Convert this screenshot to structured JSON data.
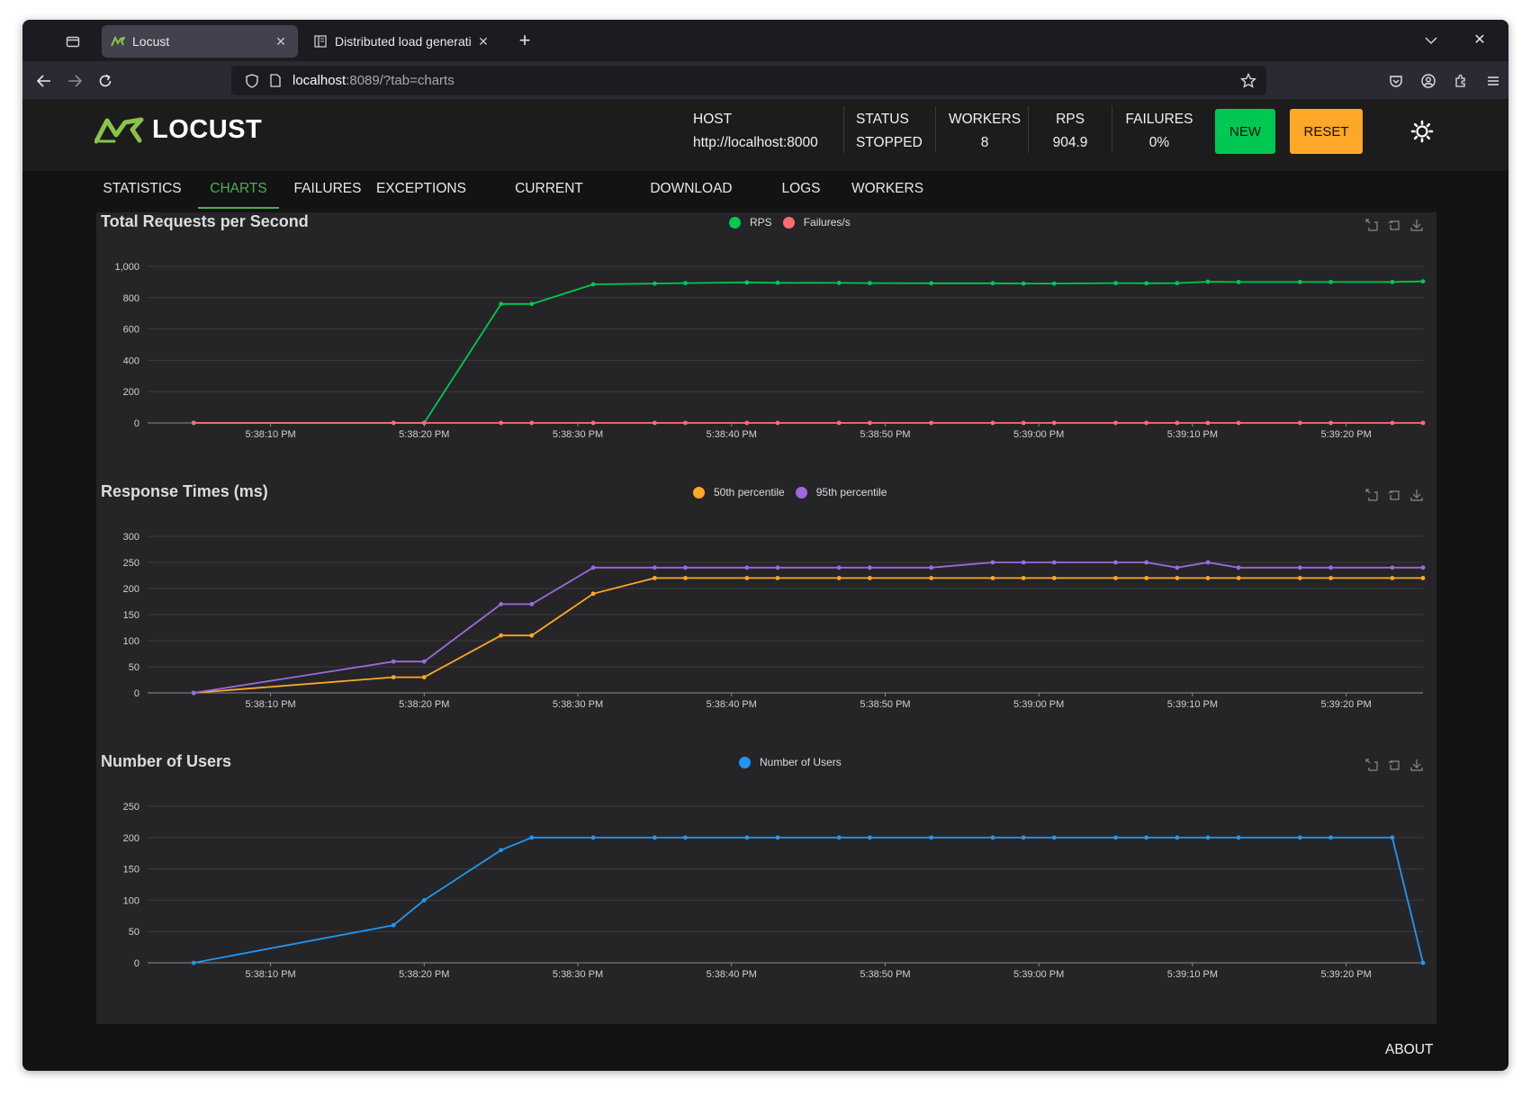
{
  "browser": {
    "tabs": [
      {
        "title": "Locust",
        "favicon": "locust-favicon-icon",
        "active": true
      },
      {
        "title": "Distributed load generati",
        "favicon": "reader-page-icon",
        "active": false
      }
    ],
    "url_host": "localhost",
    "url_rest": ":8089/?tab=charts"
  },
  "header": {
    "logo_text": "LOCUST",
    "host_label": "HOST",
    "host_value": "http://localhost:8000",
    "status_label": "STATUS",
    "status_value": "STOPPED",
    "workers_label": "WORKERS",
    "workers_value": "8",
    "rps_label": "RPS",
    "rps_value": "904.9",
    "failures_label": "FAILURES",
    "failures_value": "0%",
    "new_label": "NEW",
    "reset_label": "RESET"
  },
  "nav_tabs": [
    {
      "label": "STATISTICS",
      "active": false
    },
    {
      "label": "CHARTS",
      "active": true
    },
    {
      "label": "FAILURES",
      "active": false
    },
    {
      "label": "EXCEPTIONS",
      "active": false
    },
    {
      "label": "CURRENT RATIO",
      "active": false
    },
    {
      "label": "DOWNLOAD DATA",
      "active": false
    },
    {
      "label": "LOGS",
      "active": false
    },
    {
      "label": "WORKERS",
      "active": false
    }
  ],
  "footer": {
    "about_label": "ABOUT"
  },
  "colors": {
    "rps": "#00c853",
    "failures": "#ff6d6d",
    "p50": "#ffa726",
    "p95": "#9c6ade",
    "users": "#2196f3"
  },
  "chart_data": [
    {
      "type": "line",
      "title": "Total Requests per Second",
      "x": [
        "5:38:05",
        "5:38:18",
        "5:38:20",
        "5:38:25",
        "5:38:27",
        "5:38:31",
        "5:38:35",
        "5:38:37",
        "5:38:41",
        "5:38:43",
        "5:38:47",
        "5:38:49",
        "5:38:53",
        "5:38:57",
        "5:38:59",
        "5:39:01",
        "5:39:05",
        "5:39:07",
        "5:39:09",
        "5:39:11",
        "5:39:13",
        "5:39:17",
        "5:39:19",
        "5:39:23",
        "5:39:25"
      ],
      "xticks": [
        "5:38:10 PM",
        "5:38:20 PM",
        "5:38:30 PM",
        "5:38:40 PM",
        "5:38:50 PM",
        "5:39:00 PM",
        "5:39:10 PM",
        "5:39:20 PM"
      ],
      "ylim": [
        0,
        1000
      ],
      "yticks": [
        "0",
        "200",
        "400",
        "600",
        "800",
        "1,000"
      ],
      "series": [
        {
          "name": "RPS",
          "values": [
            0,
            0,
            0,
            760,
            760,
            885,
            890,
            893,
            897,
            895,
            894,
            893,
            892,
            892,
            890,
            890,
            893,
            892,
            893,
            902,
            900,
            900,
            900,
            900,
            904
          ]
        },
        {
          "name": "Failures/s",
          "values": [
            0,
            0,
            0,
            0,
            0,
            0,
            0,
            0,
            0,
            0,
            0,
            0,
            0,
            0,
            0,
            0,
            0,
            0,
            0,
            0,
            0,
            0,
            0,
            0,
            0
          ]
        }
      ]
    },
    {
      "type": "line",
      "title": "Response Times (ms)",
      "x": [
        "5:38:05",
        "5:38:18",
        "5:38:20",
        "5:38:25",
        "5:38:27",
        "5:38:31",
        "5:38:35",
        "5:38:37",
        "5:38:41",
        "5:38:43",
        "5:38:47",
        "5:38:49",
        "5:38:53",
        "5:38:57",
        "5:38:59",
        "5:39:01",
        "5:39:05",
        "5:39:07",
        "5:39:09",
        "5:39:11",
        "5:39:13",
        "5:39:17",
        "5:39:19",
        "5:39:23",
        "5:39:25"
      ],
      "xticks": [
        "5:38:10 PM",
        "5:38:20 PM",
        "5:38:30 PM",
        "5:38:40 PM",
        "5:38:50 PM",
        "5:39:00 PM",
        "5:39:10 PM",
        "5:39:20 PM"
      ],
      "ylim": [
        0,
        300
      ],
      "yticks": [
        "0",
        "50",
        "100",
        "150",
        "200",
        "250",
        "300"
      ],
      "series": [
        {
          "name": "50th percentile",
          "values": [
            0,
            30,
            30,
            110,
            110,
            190,
            220,
            220,
            220,
            220,
            220,
            220,
            220,
            220,
            220,
            220,
            220,
            220,
            220,
            220,
            220,
            220,
            220,
            220,
            220
          ]
        },
        {
          "name": "95th percentile",
          "values": [
            0,
            60,
            60,
            170,
            170,
            240,
            240,
            240,
            240,
            240,
            240,
            240,
            240,
            250,
            250,
            250,
            250,
            250,
            240,
            250,
            240,
            240,
            240,
            240,
            240
          ]
        }
      ]
    },
    {
      "type": "line",
      "title": "Number of Users",
      "x": [
        "5:38:05",
        "5:38:18",
        "5:38:20",
        "5:38:25",
        "5:38:27",
        "5:38:31",
        "5:38:35",
        "5:38:37",
        "5:38:41",
        "5:38:43",
        "5:38:47",
        "5:38:49",
        "5:38:53",
        "5:38:57",
        "5:38:59",
        "5:39:01",
        "5:39:05",
        "5:39:07",
        "5:39:09",
        "5:39:11",
        "5:39:13",
        "5:39:17",
        "5:39:19",
        "5:39:23",
        "5:39:25"
      ],
      "xticks": [
        "5:38:10 PM",
        "5:38:20 PM",
        "5:38:30 PM",
        "5:38:40 PM",
        "5:38:50 PM",
        "5:39:00 PM",
        "5:39:10 PM",
        "5:39:20 PM"
      ],
      "ylim": [
        0,
        250
      ],
      "yticks": [
        "0",
        "50",
        "100",
        "150",
        "200",
        "250"
      ],
      "series": [
        {
          "name": "Number of Users",
          "values": [
            0,
            60,
            100,
            180,
            200,
            200,
            200,
            200,
            200,
            200,
            200,
            200,
            200,
            200,
            200,
            200,
            200,
            200,
            200,
            200,
            200,
            200,
            200,
            200,
            0
          ]
        }
      ]
    }
  ]
}
